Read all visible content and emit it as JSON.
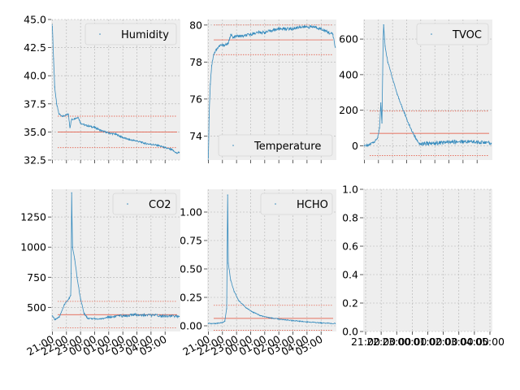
{
  "figure": {
    "colors": {
      "series": "#348ABD",
      "ref_line": "#E24A33",
      "axes_bg": "#EEEEEE",
      "grid": "#B2B2B2",
      "spine": "#BCBCBC"
    },
    "xtick_labels": [
      "21:00",
      "22:00",
      "23:00",
      "00:00",
      "01:00",
      "02:00",
      "03:00",
      "04:00",
      "05:00"
    ]
  },
  "chart_data": [
    {
      "type": "line",
      "title": "",
      "legend": "Humidity",
      "legend_loc": "upper right",
      "xlabel": "",
      "ylabel": "",
      "xlim": [
        "20:55",
        "06:05"
      ],
      "ylim": [
        32.5,
        45.0
      ],
      "yticks": [
        "32.5",
        "35.0",
        "37.5",
        "40.0",
        "42.5",
        "45.0"
      ],
      "ref_lines": [
        {
          "y": 35.0,
          "style": "solid"
        },
        {
          "y": 36.4,
          "style": "dashed"
        },
        {
          "y": 33.6,
          "style": "dashed"
        }
      ],
      "points": [
        [
          "21:00",
          44.5
        ],
        [
          "21:05",
          41.5
        ],
        [
          "21:10",
          39.0
        ],
        [
          "21:18",
          37.5
        ],
        [
          "21:28",
          36.6
        ],
        [
          "21:45",
          36.4
        ],
        [
          "22:00",
          36.5
        ],
        [
          "22:08",
          36.6
        ],
        [
          "22:15",
          35.4
        ],
        [
          "22:22",
          36.1
        ],
        [
          "22:35",
          36.2
        ],
        [
          "22:50",
          36.3
        ],
        [
          "23:00",
          35.8
        ],
        [
          "23:20",
          35.6
        ],
        [
          "23:40",
          35.5
        ],
        [
          "00:00",
          35.4
        ],
        [
          "00:30",
          35.1
        ],
        [
          "01:00",
          34.9
        ],
        [
          "01:30",
          34.8
        ],
        [
          "02:00",
          34.5
        ],
        [
          "02:30",
          34.3
        ],
        [
          "03:00",
          34.2
        ],
        [
          "03:30",
          34.0
        ],
        [
          "04:00",
          33.9
        ],
        [
          "04:30",
          33.8
        ],
        [
          "05:00",
          33.6
        ],
        [
          "05:30",
          33.4
        ],
        [
          "05:50",
          33.1
        ],
        [
          "06:00",
          33.2
        ]
      ]
    },
    {
      "type": "line",
      "title": "",
      "legend": "Temperature",
      "legend_loc": "lower right",
      "xlabel": "",
      "ylabel": "",
      "xlim": [
        "20:55",
        "06:05"
      ],
      "ylim": [
        72.7,
        80.3
      ],
      "yticks": [
        "74",
        "76",
        "78",
        "80"
      ],
      "ref_lines": [
        {
          "y": 79.2,
          "style": "solid"
        },
        {
          "y": 80.0,
          "style": "dashed"
        },
        {
          "y": 78.4,
          "style": "dashed"
        }
      ],
      "points": [
        [
          "21:00",
          72.7
        ],
        [
          "21:03",
          75.0
        ],
        [
          "21:08",
          76.8
        ],
        [
          "21:14",
          77.8
        ],
        [
          "21:22",
          78.4
        ],
        [
          "21:35",
          78.7
        ],
        [
          "21:50",
          78.9
        ],
        [
          "22:05",
          78.9
        ],
        [
          "22:25",
          79.0
        ],
        [
          "22:35",
          79.5
        ],
        [
          "22:45",
          79.3
        ],
        [
          "23:00",
          79.4
        ],
        [
          "23:30",
          79.4
        ],
        [
          "00:00",
          79.5
        ],
        [
          "00:30",
          79.6
        ],
        [
          "01:00",
          79.6
        ],
        [
          "01:30",
          79.7
        ],
        [
          "02:00",
          79.8
        ],
        [
          "02:30",
          79.8
        ],
        [
          "03:00",
          79.8
        ],
        [
          "03:30",
          79.9
        ],
        [
          "04:00",
          79.9
        ],
        [
          "04:30",
          79.9
        ],
        [
          "05:00",
          79.8
        ],
        [
          "05:30",
          79.6
        ],
        [
          "05:50",
          79.5
        ],
        [
          "06:00",
          78.8
        ]
      ]
    },
    {
      "type": "line",
      "title": "",
      "legend": "TVOC",
      "legend_loc": "upper right",
      "xlabel": "",
      "ylabel": "",
      "xlim": [
        "20:55",
        "06:05"
      ],
      "ylim": [
        -80,
        710
      ],
      "yticks": [
        "0",
        "200",
        "400",
        "600"
      ],
      "ref_lines": [
        {
          "y": 70,
          "style": "solid"
        },
        {
          "y": 195,
          "style": "dashed"
        },
        {
          "y": -55,
          "style": "dashed"
        }
      ],
      "points": [
        [
          "21:00",
          0
        ],
        [
          "21:20",
          5
        ],
        [
          "21:40",
          20
        ],
        [
          "21:55",
          40
        ],
        [
          "22:05",
          100
        ],
        [
          "22:10",
          240
        ],
        [
          "22:15",
          130
        ],
        [
          "22:20",
          600
        ],
        [
          "22:22",
          680
        ],
        [
          "22:28",
          560
        ],
        [
          "22:40",
          470
        ],
        [
          "23:00",
          380
        ],
        [
          "23:20",
          290
        ],
        [
          "23:40",
          220
        ],
        [
          "00:00",
          150
        ],
        [
          "00:20",
          90
        ],
        [
          "00:40",
          40
        ],
        [
          "00:55",
          12
        ],
        [
          "01:15",
          10
        ],
        [
          "02:00",
          15
        ],
        [
          "03:00",
          20
        ],
        [
          "04:00",
          25
        ],
        [
          "05:00",
          22
        ],
        [
          "06:00",
          15
        ]
      ]
    },
    {
      "type": "line",
      "title": "",
      "legend": "CO2",
      "legend_loc": "upper right",
      "xlabel": "",
      "ylabel": "",
      "xlim": [
        "20:55",
        "06:05"
      ],
      "ylim": [
        300,
        1480
      ],
      "yticks": [
        "500",
        "750",
        "1000",
        "1250"
      ],
      "ref_lines": [
        {
          "y": 440,
          "style": "solid"
        },
        {
          "y": 550,
          "style": "dashed"
        },
        {
          "y": 330,
          "style": "dashed"
        }
      ],
      "points": [
        [
          "21:00",
          430
        ],
        [
          "21:10",
          400
        ],
        [
          "21:30",
          420
        ],
        [
          "21:50",
          520
        ],
        [
          "22:10",
          570
        ],
        [
          "22:18",
          600
        ],
        [
          "22:20",
          780
        ],
        [
          "22:22",
          1450
        ],
        [
          "22:26",
          1000
        ],
        [
          "22:35",
          900
        ],
        [
          "22:45",
          750
        ],
        [
          "23:00",
          570
        ],
        [
          "23:15",
          450
        ],
        [
          "23:30",
          410
        ],
        [
          "00:00",
          405
        ],
        [
          "00:30",
          405
        ],
        [
          "01:00",
          420
        ],
        [
          "02:00",
          430
        ],
        [
          "03:00",
          440
        ],
        [
          "04:00",
          435
        ],
        [
          "05:00",
          430
        ],
        [
          "06:00",
          425
        ]
      ]
    },
    {
      "type": "line",
      "title": "",
      "legend": "HCHO",
      "legend_loc": "upper right",
      "xlabel": "",
      "ylabel": "",
      "xlim": [
        "20:55",
        "06:05"
      ],
      "ylim": [
        -0.05,
        1.2
      ],
      "yticks": [
        "0.00",
        "0.25",
        "0.50",
        "0.75",
        "1.00"
      ],
      "ref_lines": [
        {
          "y": 0.065,
          "style": "solid"
        },
        {
          "y": 0.18,
          "style": "dashed"
        },
        {
          "y": -0.04,
          "style": "dashed"
        }
      ],
      "points": [
        [
          "21:00",
          0.02
        ],
        [
          "21:30",
          0.02
        ],
        [
          "22:00",
          0.03
        ],
        [
          "22:10",
          0.04
        ],
        [
          "22:18",
          0.15
        ],
        [
          "22:22",
          1.15
        ],
        [
          "22:25",
          0.55
        ],
        [
          "22:35",
          0.4
        ],
        [
          "22:50",
          0.3
        ],
        [
          "23:10",
          0.22
        ],
        [
          "23:40",
          0.16
        ],
        [
          "00:10",
          0.12
        ],
        [
          "00:40",
          0.09
        ],
        [
          "01:20",
          0.07
        ],
        [
          "02:00",
          0.06
        ],
        [
          "03:00",
          0.045
        ],
        [
          "04:00",
          0.035
        ],
        [
          "05:00",
          0.025
        ],
        [
          "06:00",
          0.02
        ]
      ]
    },
    {
      "type": "line",
      "title": "",
      "legend": "",
      "xlabel": "",
      "ylabel": "",
      "ylim": [
        0.0,
        1.0
      ],
      "yticks": [
        "0.0",
        "0.2",
        "0.4",
        "0.6",
        "0.8",
        "1.0"
      ],
      "points": []
    }
  ]
}
